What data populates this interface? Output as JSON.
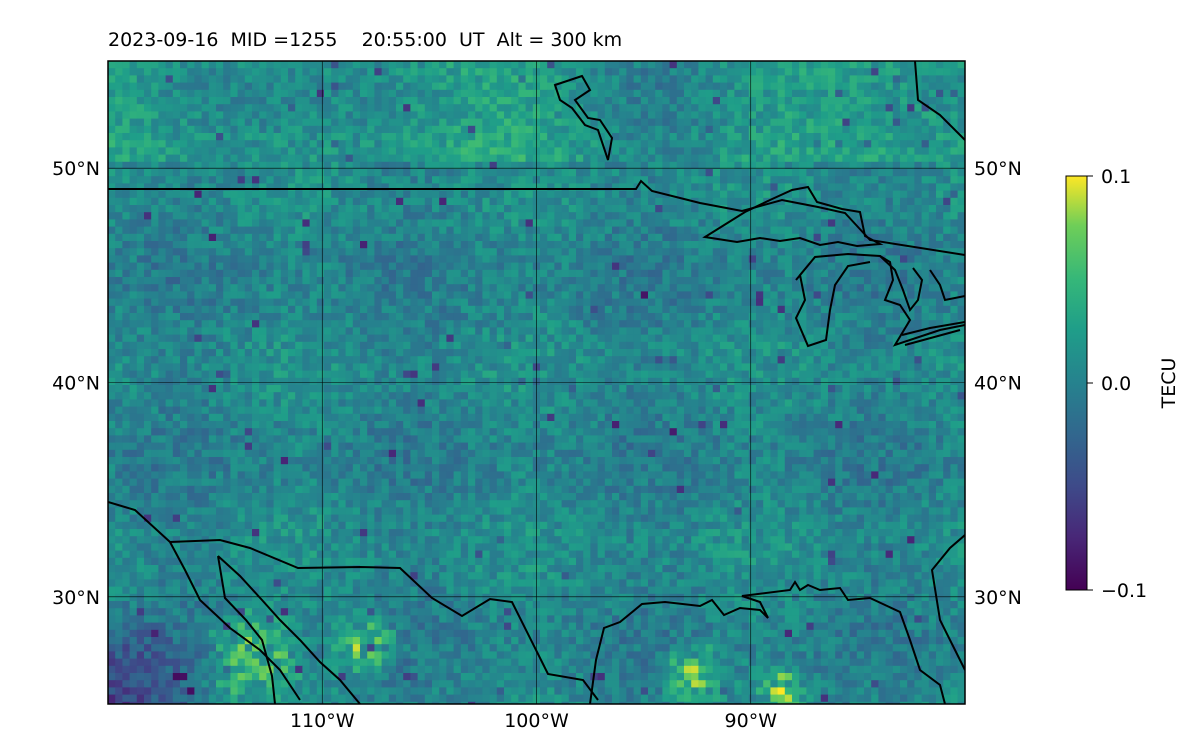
{
  "title": "2023-09-16  MID =1255    20:55:00  UT  Alt = 300 km",
  "map": {
    "lon_range": [
      -120,
      -80
    ],
    "lat_range": [
      25,
      55
    ],
    "lon_ticks": [
      {
        "value": -110,
        "label": "110°W"
      },
      {
        "value": -100,
        "label": "100°W"
      },
      {
        "value": -90,
        "label": "90°W"
      }
    ],
    "lat_ticks": [
      {
        "value": 50,
        "label": "50°N"
      },
      {
        "value": 40,
        "label": "40°N"
      },
      {
        "value": 30,
        "label": "30°N"
      }
    ],
    "gridlines": true,
    "coastlines": true
  },
  "colorbar": {
    "label": "TECU",
    "colormap": "viridis",
    "ticks": [
      {
        "value": 0.1,
        "label": "0.1"
      },
      {
        "value": 0.0,
        "label": "0.0"
      },
      {
        "value": -0.1,
        "label": "−0.1"
      }
    ],
    "range": [
      -0.1,
      0.1
    ]
  },
  "colors": {
    "viridis_low": "#440154",
    "viridis_mid": "#21918c",
    "viridis_high": "#fde725"
  }
}
